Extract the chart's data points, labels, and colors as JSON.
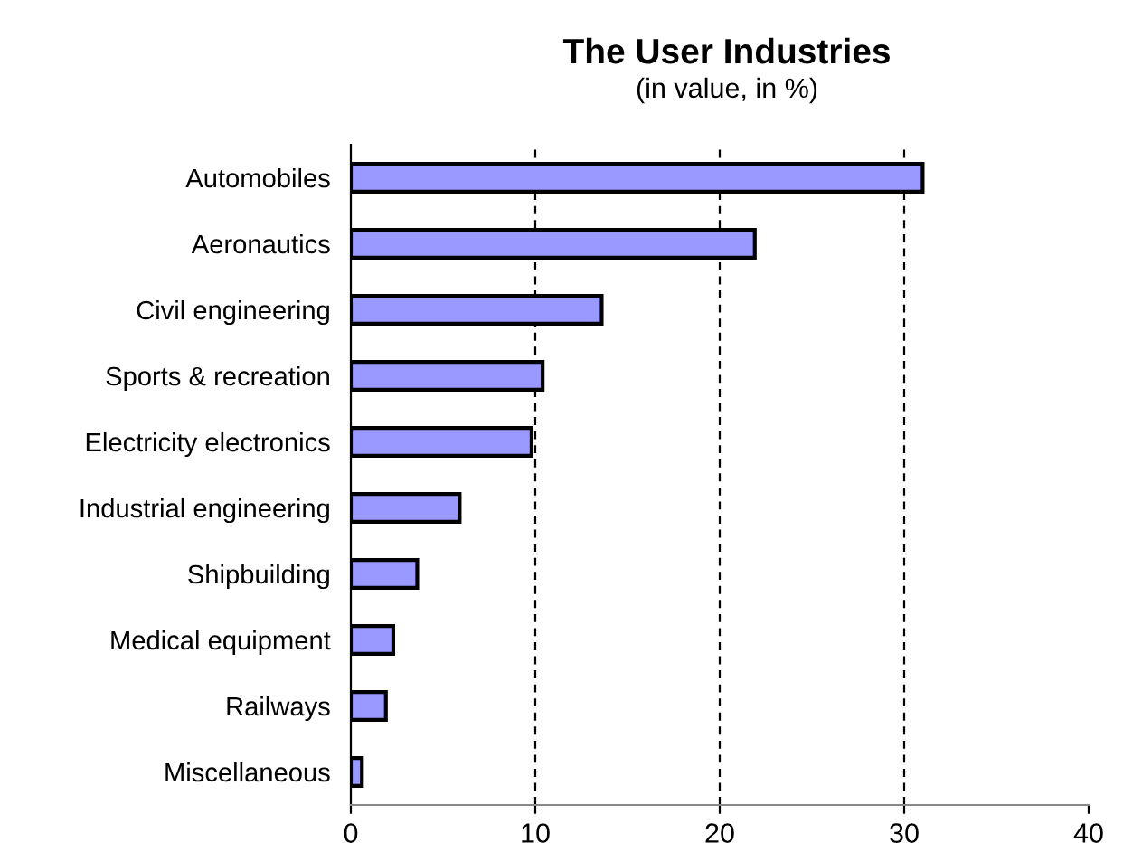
{
  "chart_data": {
    "type": "bar",
    "orientation": "horizontal",
    "title": "The User Industries",
    "subtitle": "(in value, in %)",
    "categories": [
      "Automobiles",
      "Aeronautics",
      "Civil engineering",
      "Sports & recreation",
      "Electricity electronics",
      "Industrial engineering",
      "Shipbuilding",
      "Medical equipment",
      "Railways",
      "Miscellaneous"
    ],
    "values": [
      31.0,
      21.9,
      13.6,
      10.4,
      9.8,
      5.9,
      3.6,
      2.3,
      1.9,
      0.6
    ],
    "color": "#9999ff",
    "xlim": [
      0,
      40
    ],
    "xticks": [
      0,
      10,
      20,
      30,
      40
    ],
    "grid": "x"
  }
}
